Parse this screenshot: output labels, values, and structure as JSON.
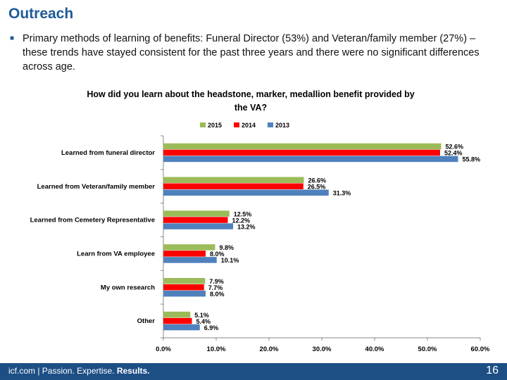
{
  "slide": {
    "title": "Outreach",
    "bullet": "Primary methods of learning of benefits: Funeral Director (53%) and Veteran/family member (27%) – these trends have stayed consistent for the past three years and there were no significant differences across age."
  },
  "footer": {
    "brand": "icf.com | Passion. Expertise. ",
    "results": "Results.",
    "page_number": "16"
  },
  "chart_data": {
    "type": "bar",
    "orientation": "horizontal",
    "title_line1": "How did you learn about the headstone, marker, medallion benefit provided by",
    "title_line2": "the VA?",
    "categories": [
      "Learned from funeral director",
      "Learned from Veteran/family member",
      "Learned from Cemetery Representative",
      "Learn from VA employee",
      "My own research",
      "Other"
    ],
    "series": [
      {
        "name": "2015",
        "color": "#9bbb59",
        "values": [
          52.6,
          26.6,
          12.5,
          9.8,
          7.9,
          5.1
        ],
        "labels": [
          "52.6%",
          "26.6%",
          "12.5%",
          "9.8%",
          "7.9%",
          "5.1%"
        ]
      },
      {
        "name": "2014",
        "color": "#ff0000",
        "values": [
          52.4,
          26.5,
          12.2,
          8.0,
          7.7,
          5.4
        ],
        "labels": [
          "52.4%",
          "26.5%",
          "12.2%",
          "8.0%",
          "7.7%",
          "5.4%"
        ]
      },
      {
        "name": "2013",
        "color": "#4f81bd",
        "values": [
          55.8,
          31.3,
          13.2,
          10.1,
          8.0,
          6.9
        ],
        "labels": [
          "55.8%",
          "31.3%",
          "13.2%",
          "10.1%",
          "8.0%",
          "6.9%"
        ]
      }
    ],
    "xlim": [
      0,
      60
    ],
    "xticks": [
      0,
      10,
      20,
      30,
      40,
      50,
      60
    ],
    "xtick_labels": [
      "0.0%",
      "10.0%",
      "20.0%",
      "30.0%",
      "40.0%",
      "50.0%",
      "60.0%"
    ],
    "legend_position": "top",
    "grid": false
  }
}
